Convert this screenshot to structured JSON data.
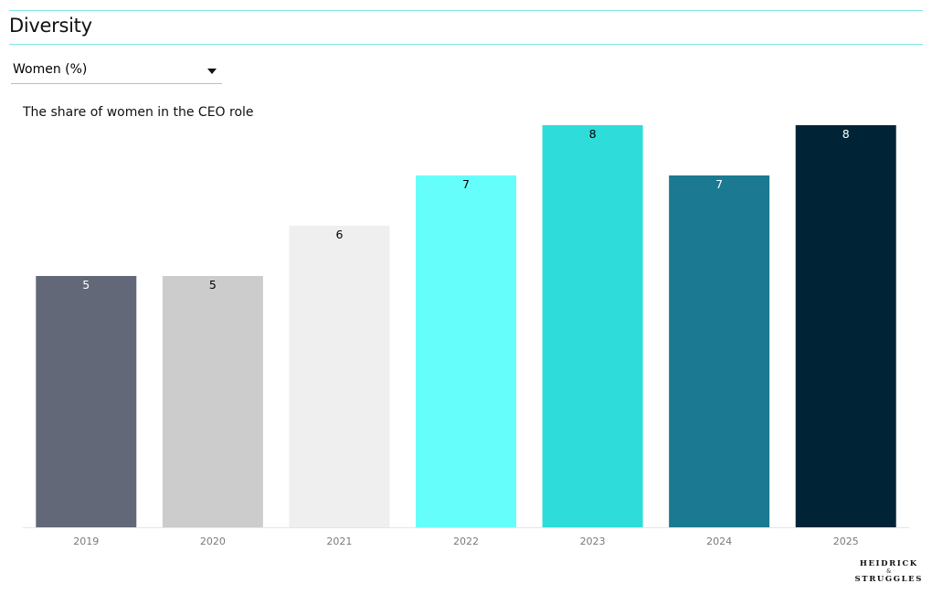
{
  "section": {
    "title": "Diversity"
  },
  "filter": {
    "selected": "Women (%)"
  },
  "chart_title": "The share of women in the CEO role",
  "logo": {
    "line1": "HEIDRICK",
    "line2": "&",
    "line3": "STRUGGLES"
  },
  "colors": {
    "axis": "#e6e6e6",
    "rule": "#7fe8e8"
  },
  "chart_data": {
    "type": "bar",
    "categories": [
      "2019",
      "2020",
      "2021",
      "2022",
      "2023",
      "2024",
      "2025"
    ],
    "values": [
      5,
      5,
      6,
      7,
      8,
      7,
      8
    ],
    "bar_colors": [
      "#636878",
      "#cccccc",
      "#efefef",
      "#66fefb",
      "#2edcd9",
      "#1b7a91",
      "#002436"
    ],
    "label_colors": [
      "#ffffff",
      "#000000",
      "#000000",
      "#000000",
      "#000000",
      "#ffffff",
      "#ffffff"
    ],
    "title": "The share of women in the CEO role",
    "xlabel": "",
    "ylabel": "",
    "ylim": [
      0,
      8
    ],
    "grid": false,
    "data_labels": true
  }
}
